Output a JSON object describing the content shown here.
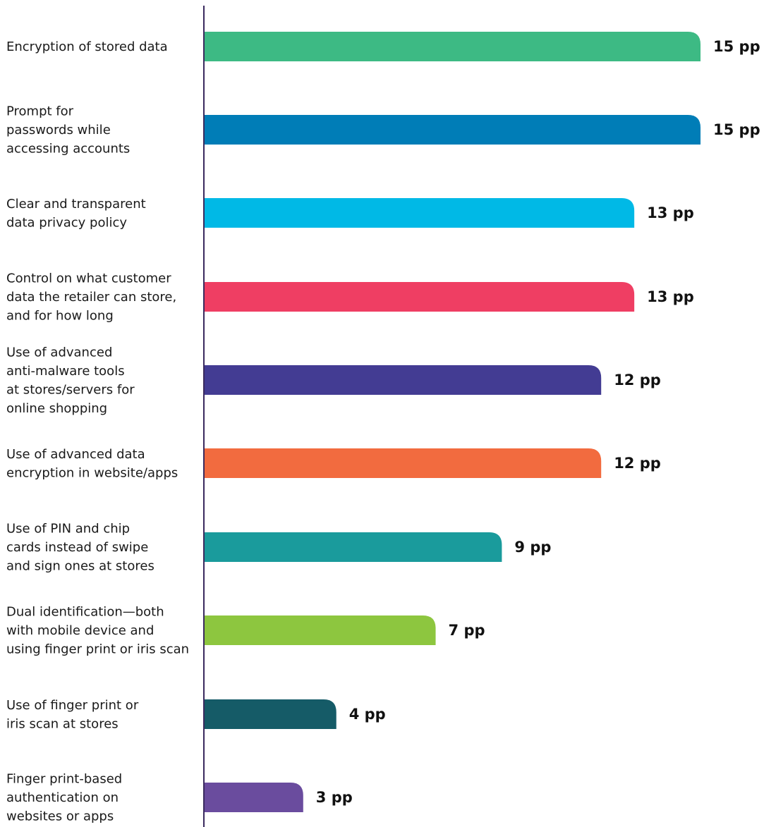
{
  "chart_data": {
    "type": "bar",
    "orientation": "horizontal",
    "categories": [
      [
        "Encryption of stored data"
      ],
      [
        "Prompt for",
        "passwords while",
        "accessing accounts"
      ],
      [
        "Clear and transparent",
        "data privacy policy"
      ],
      [
        "Control on what customer",
        "data the retailer can store,",
        "and for how long"
      ],
      [
        "Use of advanced",
        "anti-malware tools",
        "at stores/servers for",
        "online shopping"
      ],
      [
        "Use of advanced data",
        "encryption in website/apps"
      ],
      [
        "Use of PIN and chip",
        "cards instead of swipe",
        "and sign ones at stores"
      ],
      [
        "Dual identification—both",
        "with mobile device and",
        "using finger print or iris scan"
      ],
      [
        "Use of finger print or",
        "iris scan at stores"
      ],
      [
        "Finger print-based",
        "authentication on",
        "websites or apps"
      ]
    ],
    "values": [
      15,
      15,
      13,
      13,
      12,
      12,
      9,
      7,
      4,
      3
    ],
    "value_labels": [
      "15 pp",
      "15 pp",
      "13 pp",
      "13 pp",
      "12 pp",
      "12 pp",
      "9 pp",
      "7 pp",
      "4 pp",
      "3 pp"
    ],
    "colors": [
      "#3dba84",
      "#007db7",
      "#00b9e6",
      "#ef3e63",
      "#433c93",
      "#f26b3f",
      "#1a9b9c",
      "#8dc63f",
      "#155b67",
      "#6a4c9e"
    ],
    "axis_color": "#3a2a5e",
    "xlim": [
      0,
      15
    ],
    "grid": false,
    "legend": "none"
  }
}
